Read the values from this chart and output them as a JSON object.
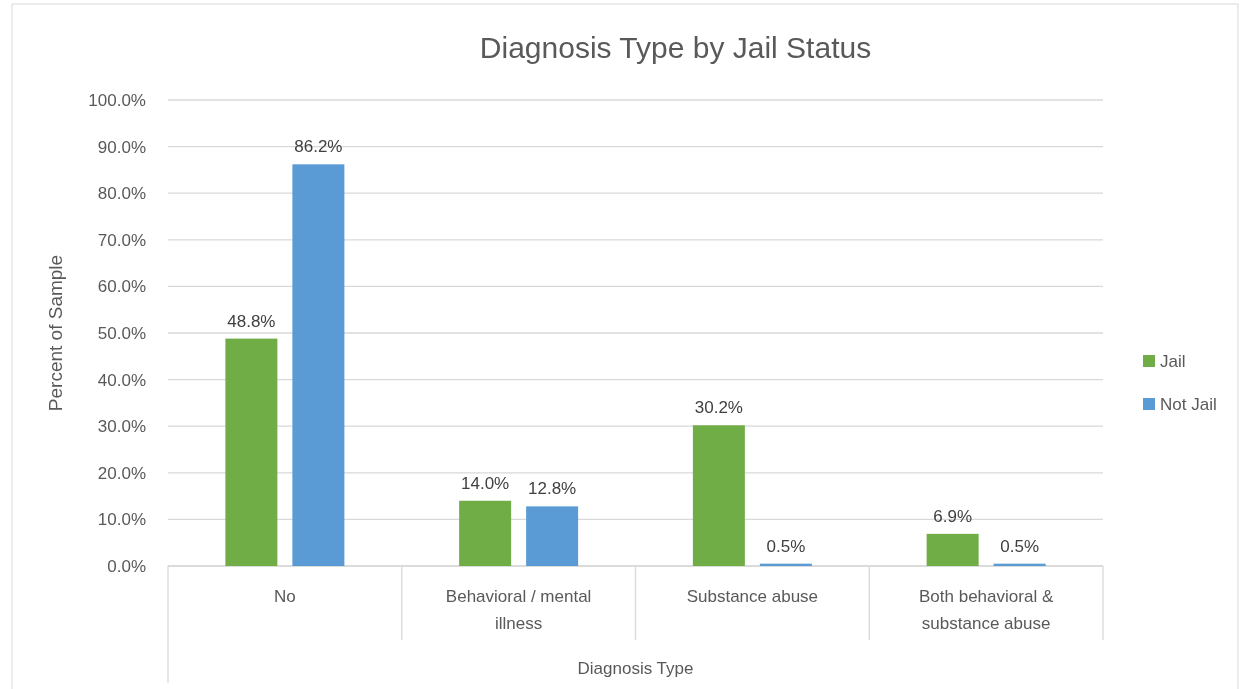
{
  "chart_data": {
    "type": "bar",
    "title": "Diagnosis Type by Jail Status",
    "xlabel": "Diagnosis Type",
    "ylabel": "Percent of Sample",
    "categories": [
      "No",
      "Behavioral / mental illness",
      "Substance abuse",
      "Both behavioral & substance abuse"
    ],
    "series": [
      {
        "name": "Jail",
        "color": "#70ad47",
        "values": [
          48.8,
          14.0,
          30.2,
          6.9
        ],
        "value_labels": [
          "48.8%",
          "14.0%",
          "30.2%",
          "6.9%"
        ]
      },
      {
        "name": "Not Jail",
        "color": "#5b9bd5",
        "values": [
          86.2,
          12.8,
          0.5,
          0.5
        ],
        "value_labels": [
          "86.2%",
          "12.8%",
          "0.5%",
          "0.5%"
        ]
      }
    ],
    "ylim": [
      0,
      100
    ],
    "yticks": [
      {
        "value": 0,
        "label": "0.0%"
      },
      {
        "value": 10,
        "label": "10.0%"
      },
      {
        "value": 20,
        "label": "20.0%"
      },
      {
        "value": 30,
        "label": "30.0%"
      },
      {
        "value": 40,
        "label": "40.0%"
      },
      {
        "value": 50,
        "label": "50.0%"
      },
      {
        "value": 60,
        "label": "60.0%"
      },
      {
        "value": 70,
        "label": "70.0%"
      },
      {
        "value": 80,
        "label": "80.0%"
      },
      {
        "value": 90,
        "label": "90.0%"
      },
      {
        "value": 100,
        "label": "100.0%"
      }
    ],
    "grid": "y",
    "legend": "right"
  }
}
